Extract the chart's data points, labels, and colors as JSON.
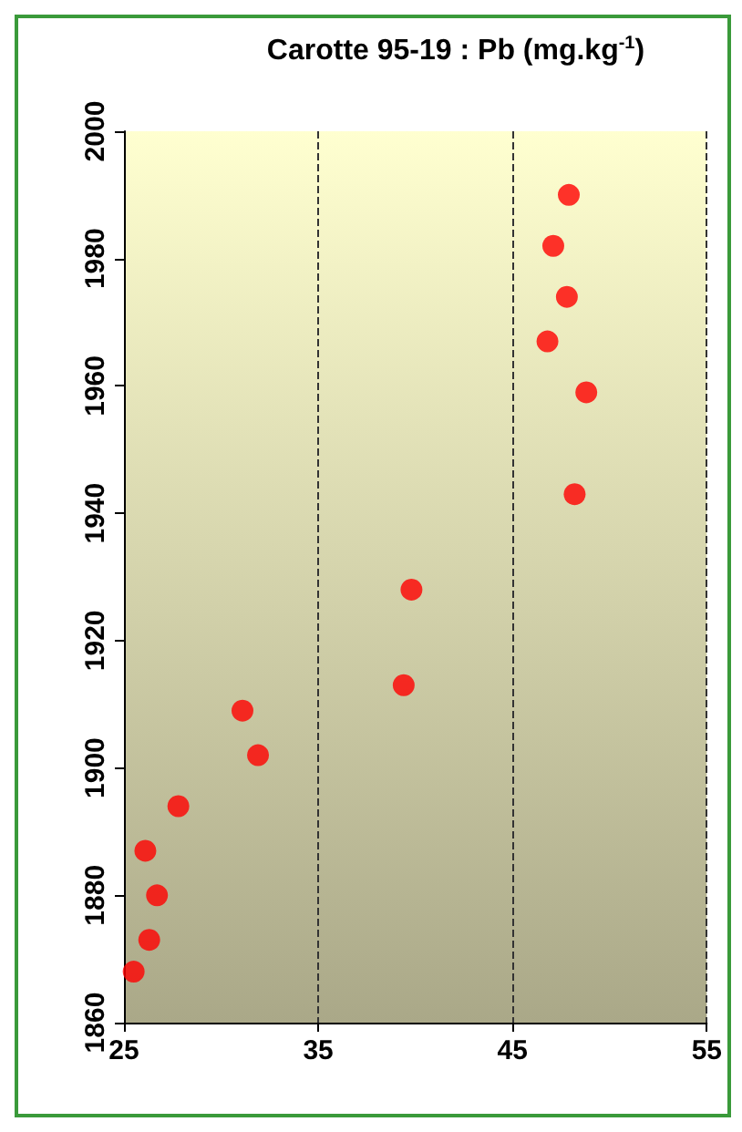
{
  "chart_data": {
    "type": "scatter",
    "title": "Carotte 95-19 : Pb (mg.kg$^{-1}$)",
    "x": [
      25.5,
      26.3,
      26.7,
      26.1,
      27.8,
      31.9,
      31.1,
      39.4,
      39.8,
      48.2,
      48.8,
      46.8,
      47.8,
      47.1,
      47.9
    ],
    "series": [
      {
        "color": "#ff0000",
        "values": [
          1868,
          1873,
          1880,
          1887,
          1894,
          1902,
          1909,
          1913,
          1928,
          1943,
          1959,
          1967,
          1974,
          1982,
          1990
        ]
      }
    ],
    "xlim": [
      25,
      55
    ],
    "xticks": [
      25,
      35,
      45,
      55
    ],
    "ylim": [
      1860,
      2000
    ],
    "yticks": [
      1860,
      1880,
      1900,
      1920,
      1940,
      1960,
      1980,
      2000
    ],
    "grid": "x",
    "marker": "circle"
  }
}
